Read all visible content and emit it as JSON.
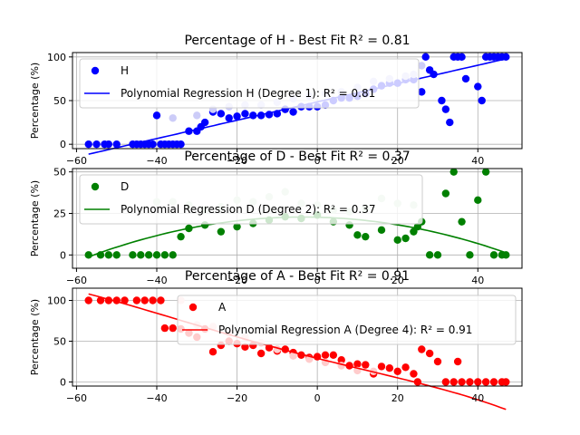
{
  "chart_data": [
    {
      "type": "scatter",
      "title": "Percentage of H - Best Fit R² = 0.81",
      "xlabel": "",
      "ylabel": "Percentage (%)",
      "xlim": [
        -61,
        51
      ],
      "ylim": [
        -5,
        105
      ],
      "xticks": [
        -60,
        -40,
        -20,
        0,
        20,
        40
      ],
      "yticks": [
        0,
        50,
        100
      ],
      "grid": true,
      "legend_position": "upper-left",
      "series": [
        {
          "name": "H",
          "kind": "points",
          "color": "#0000ff",
          "x": [
            -57,
            -55,
            -53,
            -52,
            -50,
            -46,
            -45,
            -44,
            -43,
            -42,
            -41,
            -40,
            -39,
            -38,
            -37,
            -36,
            -35,
            -34,
            -32,
            -30,
            -29,
            -28,
            -26,
            -24,
            -22,
            -20,
            -18,
            -16,
            -14,
            -12,
            -10,
            -8,
            -6,
            -4,
            -2,
            0,
            2,
            4,
            6,
            8,
            10,
            12,
            14,
            16,
            18,
            20,
            22,
            24,
            26,
            27,
            28,
            29,
            31,
            32,
            33,
            34,
            35,
            36,
            37,
            40,
            41,
            42,
            43,
            44,
            45,
            46,
            47
          ],
          "y": [
            0,
            0,
            0,
            0,
            0,
            0,
            0,
            0,
            0,
            0,
            0,
            33,
            0,
            0,
            0,
            0,
            0,
            0,
            15,
            15,
            20,
            25,
            37,
            35,
            30,
            32,
            35,
            33,
            33,
            34,
            35,
            40,
            37,
            43,
            43,
            43,
            45,
            50,
            53,
            53,
            55,
            58,
            63,
            67,
            70,
            70,
            74,
            74,
            60,
            100,
            85,
            80,
            50,
            40,
            25,
            100,
            100,
            100,
            75,
            66,
            50,
            100,
            100,
            100,
            100,
            100,
            100
          ]
        },
        {
          "name": "H (light)",
          "kind": "points",
          "color": "#ccccf8",
          "x": [
            -36,
            -30,
            -26,
            -22,
            -18,
            -14,
            -10,
            -6,
            -2,
            2,
            6,
            10,
            14,
            18,
            22,
            24,
            26
          ],
          "y": [
            30,
            33,
            40,
            43,
            45,
            45,
            48,
            52,
            55,
            58,
            60,
            65,
            72,
            75,
            78,
            80,
            90
          ]
        },
        {
          "name": "Polynomial Regression H (Degree 1): R² = 0.81",
          "kind": "line",
          "color": "#0000ff",
          "degree": 1,
          "coeffs": [
            48.5,
            1.05
          ],
          "x_range": [
            -57,
            47
          ]
        }
      ]
    },
    {
      "type": "scatter",
      "title": "Percentage of D - Best Fit R² = 0.37",
      "xlabel": "",
      "ylabel": "Percentage (%)",
      "xlim": [
        -61,
        51
      ],
      "ylim": [
        -8,
        52
      ],
      "xticks": [
        -60,
        -40,
        -20,
        0,
        20,
        40
      ],
      "yticks": [
        0,
        25,
        50
      ],
      "grid": true,
      "legend_position": "upper-left",
      "series": [
        {
          "name": "D",
          "kind": "points",
          "color": "#008000",
          "x": [
            -57,
            -54,
            -52,
            -50,
            -46,
            -44,
            -42,
            -40,
            -38,
            -36,
            -34,
            -32,
            -28,
            -24,
            -20,
            -16,
            -12,
            -8,
            -4,
            0,
            4,
            8,
            10,
            12,
            16,
            20,
            22,
            24,
            25,
            26,
            28,
            30,
            32,
            34,
            36,
            38,
            40,
            42,
            44,
            46,
            47
          ],
          "y": [
            0,
            0,
            0,
            0,
            0,
            0,
            0,
            0,
            0,
            0,
            11,
            16,
            18,
            14,
            17,
            19,
            21,
            23,
            22,
            24,
            20,
            18,
            12,
            11,
            15,
            9,
            10,
            14,
            17,
            20,
            0,
            0,
            37,
            50,
            20,
            0,
            33,
            50,
            0,
            0,
            0
          ]
        },
        {
          "name": "D (light)",
          "kind": "points",
          "color": "#cce5cc",
          "x": [
            -40,
            -36,
            -32,
            -28,
            -24,
            -20,
            -16,
            -12,
            -8,
            -4,
            0,
            4,
            8,
            12,
            16,
            20,
            24
          ],
          "y": [
            32,
            32,
            30,
            27,
            29,
            33,
            32,
            35,
            38,
            31,
            30,
            27,
            26,
            28,
            34,
            31,
            30
          ]
        },
        {
          "name": "Polynomial Regression D (Degree 2): R² = 0.37",
          "kind": "line",
          "color": "#008000",
          "degree": 2,
          "coeffs": [
            22.7,
            -0.06,
            -0.0084
          ],
          "x_range": [
            -57,
            47
          ]
        }
      ]
    },
    {
      "type": "scatter",
      "title": "Percentage of A - Best Fit R² = 0.91",
      "xlabel": "",
      "ylabel": "Percentage (%)",
      "xlim": [
        -61,
        51
      ],
      "ylim": [
        -5,
        115
      ],
      "xticks": [
        -60,
        -40,
        -20,
        0,
        20,
        40
      ],
      "yticks": [
        0,
        50,
        100
      ],
      "grid": true,
      "legend_position": "upper-right",
      "series": [
        {
          "name": "A",
          "kind": "points",
          "color": "#ff0000",
          "x": [
            -57,
            -54,
            -52,
            -50,
            -48,
            -45,
            -43,
            -41,
            -39,
            -38,
            -36,
            -34,
            -32,
            -30,
            -28,
            -26,
            -24,
            -22,
            -20,
            -18,
            -16,
            -14,
            -12,
            -10,
            -8,
            -6,
            -4,
            -2,
            0,
            2,
            4,
            6,
            8,
            10,
            12,
            14,
            16,
            18,
            20,
            22,
            24,
            25,
            26,
            28,
            30,
            32,
            34,
            35,
            36,
            38,
            40,
            42,
            44,
            46,
            47
          ],
          "y": [
            100,
            100,
            100,
            100,
            100,
            100,
            100,
            100,
            100,
            66,
            66,
            65,
            60,
            55,
            65,
            37,
            45,
            50,
            47,
            43,
            45,
            35,
            42,
            38,
            40,
            36,
            33,
            30,
            31,
            33,
            33,
            27,
            20,
            22,
            21,
            10,
            19,
            17,
            13,
            18,
            10,
            0,
            40,
            35,
            25,
            0,
            0,
            25,
            0,
            0,
            0,
            0,
            0,
            0,
            0
          ]
        },
        {
          "name": "A (light)",
          "kind": "points",
          "color": "#ffcccc",
          "x": [
            -34,
            -30,
            -26,
            -22,
            -18,
            -14,
            -10,
            -6,
            -2,
            2,
            6,
            10,
            14
          ],
          "y": [
            100,
            70,
            68,
            60,
            55,
            48,
            40,
            32,
            28,
            24,
            20,
            14,
            13
          ]
        },
        {
          "name": "Polynomial Regression A (Degree 4): R² = 0.91",
          "kind": "line",
          "color": "#ff0000",
          "degree": 4,
          "coeffs": [
            29.0,
            -1.23,
            0.0035,
            -6e-05,
            -1.3e-06
          ],
          "x_range": [
            -57,
            47
          ]
        }
      ]
    }
  ]
}
